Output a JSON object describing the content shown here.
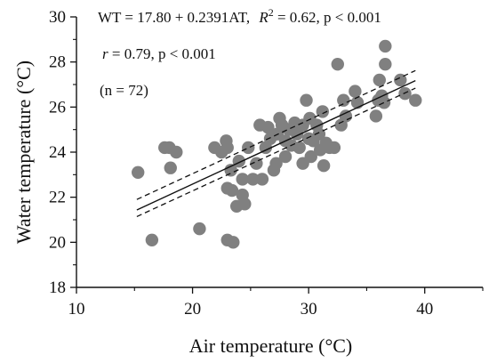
{
  "chart_data": {
    "type": "scatter",
    "title": "",
    "xlabel": "Air temperature (°C)",
    "ylabel": "Water temperature (°C)",
    "xlim": [
      10,
      45
    ],
    "ylim": [
      18,
      30
    ],
    "xticks": [
      10,
      20,
      30,
      40
    ],
    "yticks": [
      18,
      20,
      22,
      24,
      26,
      28,
      30
    ],
    "grid": false,
    "point_color": "#808080",
    "annotations": {
      "eq_main": "WT = 17.80 + 0.2391AT,",
      "eq_r2_symbol": "R",
      "eq_r2_exp": "2",
      "eq_r2_rest": " = 0.62, p < 0.001",
      "r_symbol": "r",
      "r_rest": " = 0.79, p < 0.001",
      "n": "(n = 72)"
    },
    "regression": {
      "intercept": 17.8,
      "slope": 0.2391,
      "x_range": [
        15.2,
        39.2
      ]
    },
    "confidence_band": {
      "lower": [
        [
          15.2,
          21.14
        ],
        [
          39.2,
          26.84
        ]
      ],
      "upper": [
        [
          15.2,
          21.9
        ],
        [
          39.2,
          27.62
        ]
      ]
    },
    "points": [
      [
        15.3,
        23.1
      ],
      [
        16.5,
        20.1
      ],
      [
        17.6,
        24.2
      ],
      [
        18.0,
        24.2
      ],
      [
        18.1,
        23.3
      ],
      [
        18.6,
        24.0
      ],
      [
        20.6,
        20.6
      ],
      [
        21.9,
        24.2
      ],
      [
        22.5,
        24.0
      ],
      [
        22.9,
        24.5
      ],
      [
        23.0,
        24.2
      ],
      [
        23.0,
        20.1
      ],
      [
        23.3,
        23.2
      ],
      [
        23.4,
        22.3
      ],
      [
        23.5,
        20.0
      ],
      [
        23.0,
        22.4
      ],
      [
        23.8,
        21.6
      ],
      [
        24.0,
        23.6
      ],
      [
        24.3,
        22.8
      ],
      [
        24.3,
        22.1
      ],
      [
        24.5,
        21.7
      ],
      [
        24.8,
        24.2
      ],
      [
        25.2,
        22.8
      ],
      [
        25.5,
        23.5
      ],
      [
        25.8,
        25.2
      ],
      [
        26.0,
        22.8
      ],
      [
        26.3,
        24.2
      ],
      [
        26.5,
        25.1
      ],
      [
        26.7,
        24.6
      ],
      [
        27.0,
        23.2
      ],
      [
        27.2,
        23.5
      ],
      [
        27.3,
        24.8
      ],
      [
        27.5,
        25.5
      ],
      [
        27.7,
        25.2
      ],
      [
        28.0,
        24.5
      ],
      [
        28.0,
        23.8
      ],
      [
        28.3,
        25.0
      ],
      [
        28.5,
        24.3
      ],
      [
        28.8,
        25.3
      ],
      [
        29.0,
        24.8
      ],
      [
        29.2,
        24.2
      ],
      [
        29.5,
        23.5
      ],
      [
        29.5,
        25.2
      ],
      [
        29.8,
        26.3
      ],
      [
        30.0,
        24.6
      ],
      [
        30.1,
        25.5
      ],
      [
        30.2,
        23.8
      ],
      [
        30.4,
        24.5
      ],
      [
        30.7,
        25.2
      ],
      [
        30.9,
        24.8
      ],
      [
        31.0,
        24.1
      ],
      [
        31.2,
        25.8
      ],
      [
        31.3,
        23.4
      ],
      [
        31.5,
        24.4
      ],
      [
        31.8,
        24.2
      ],
      [
        32.2,
        24.2
      ],
      [
        32.5,
        27.9
      ],
      [
        32.8,
        25.2
      ],
      [
        33.0,
        26.3
      ],
      [
        33.2,
        25.6
      ],
      [
        34.0,
        26.7
      ],
      [
        34.2,
        26.2
      ],
      [
        35.8,
        25.6
      ],
      [
        36.0,
        26.3
      ],
      [
        36.1,
        27.2
      ],
      [
        36.3,
        26.5
      ],
      [
        36.5,
        26.2
      ],
      [
        36.6,
        28.7
      ],
      [
        36.6,
        27.9
      ],
      [
        37.9,
        27.2
      ],
      [
        38.3,
        26.6
      ],
      [
        39.2,
        26.3
      ]
    ]
  }
}
